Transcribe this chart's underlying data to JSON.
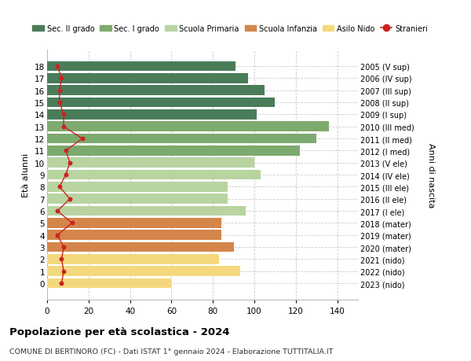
{
  "ages": [
    18,
    17,
    16,
    15,
    14,
    13,
    12,
    11,
    10,
    9,
    8,
    7,
    6,
    5,
    4,
    3,
    2,
    1,
    0
  ],
  "right_labels": [
    "2005 (V sup)",
    "2006 (IV sup)",
    "2007 (III sup)",
    "2008 (II sup)",
    "2009 (I sup)",
    "2010 (III med)",
    "2011 (II med)",
    "2012 (I med)",
    "2013 (V ele)",
    "2014 (IV ele)",
    "2015 (III ele)",
    "2016 (II ele)",
    "2017 (I ele)",
    "2018 (mater)",
    "2019 (mater)",
    "2020 (mater)",
    "2021 (nido)",
    "2022 (nido)",
    "2023 (nido)"
  ],
  "bar_values": [
    91,
    97,
    105,
    110,
    101,
    136,
    130,
    122,
    100,
    103,
    87,
    87,
    96,
    84,
    84,
    90,
    83,
    93,
    60
  ],
  "bar_colors": [
    "#4a7c59",
    "#4a7c59",
    "#4a7c59",
    "#4a7c59",
    "#4a7c59",
    "#7daa6e",
    "#7daa6e",
    "#7daa6e",
    "#b8d4a0",
    "#b8d4a0",
    "#b8d4a0",
    "#b8d4a0",
    "#b8d4a0",
    "#d4854a",
    "#d4854a",
    "#d4854a",
    "#f5d87e",
    "#f5d87e",
    "#f5d87e"
  ],
  "stranieri_values": [
    5,
    7,
    6,
    6,
    8,
    8,
    17,
    9,
    11,
    9,
    6,
    11,
    5,
    12,
    5,
    8,
    7,
    8,
    7
  ],
  "title": "Popolazione per età scolastica - 2024",
  "subtitle": "COMUNE DI BERTINORO (FC) - Dati ISTAT 1° gennaio 2024 - Elaborazione TUTTITALIA.IT",
  "ylabel_left": "Età alunni",
  "ylabel_right": "Anni di nascita",
  "xlim": [
    0,
    150
  ],
  "xticks": [
    0,
    20,
    40,
    60,
    80,
    100,
    120,
    140
  ],
  "legend_labels": [
    "Sec. II grado",
    "Sec. I grado",
    "Scuola Primaria",
    "Scuola Infanzia",
    "Asilo Nido",
    "Stranieri"
  ],
  "legend_colors": [
    "#4a7c59",
    "#7daa6e",
    "#b8d4a0",
    "#d4854a",
    "#f5d87e",
    "#cc2222"
  ],
  "bg_color": "#ffffff",
  "grid_color": "#cccccc",
  "bar_height": 0.82
}
